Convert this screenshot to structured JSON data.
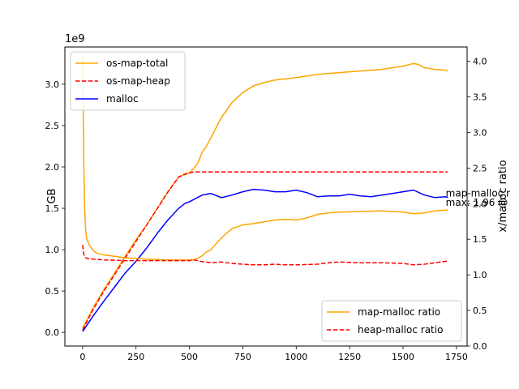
{
  "chart_data": {
    "type": "line",
    "x_ticks": [
      0,
      250,
      500,
      750,
      1000,
      1250,
      1500,
      1750
    ],
    "xlim": [
      -83,
      1800
    ],
    "left_axis": {
      "label": "GB",
      "offset_text": "1e9",
      "ylim": [
        -0.165,
        3.45
      ],
      "ticks": [
        0.0,
        0.5,
        1.0,
        1.5,
        2.0,
        2.5,
        3.0
      ],
      "tick_labels": [
        "0.0",
        "0.5",
        "1.0",
        "1.5",
        "2.0",
        "2.5",
        "3.0"
      ]
    },
    "right_axis": {
      "label": "x/malloc ratio",
      "ylim": [
        0.0,
        4.2
      ],
      "ticks": [
        0.0,
        0.5,
        1.0,
        1.5,
        2.0,
        2.5,
        3.0,
        3.5,
        4.0
      ],
      "tick_labels": [
        "0.0",
        "0.5",
        "1.0",
        "1.5",
        "2.0",
        "2.5",
        "3.0",
        "3.5",
        "4.0"
      ]
    },
    "series_left": [
      {
        "name": "os-map-total",
        "color": "#ffa500",
        "style": "solid",
        "x": [
          0,
          20,
          50,
          100,
          150,
          200,
          250,
          300,
          350,
          400,
          450,
          480,
          500,
          520,
          540,
          560,
          580,
          600,
          650,
          700,
          750,
          800,
          850,
          900,
          1000,
          1100,
          1200,
          1300,
          1400,
          1500,
          1550,
          1570,
          1600,
          1650,
          1700,
          1710
        ],
        "y": [
          0.05,
          0.15,
          0.3,
          0.52,
          0.72,
          0.92,
          1.12,
          1.3,
          1.5,
          1.7,
          1.88,
          1.92,
          1.93,
          1.98,
          2.05,
          2.18,
          2.25,
          2.35,
          2.6,
          2.78,
          2.9,
          2.98,
          3.02,
          3.05,
          3.08,
          3.12,
          3.14,
          3.16,
          3.18,
          3.22,
          3.25,
          3.24,
          3.2,
          3.18,
          3.17,
          3.16
        ]
      },
      {
        "name": "os-map-heap",
        "color": "#ff0000",
        "style": "dashed",
        "x": [
          0,
          50,
          100,
          150,
          200,
          250,
          300,
          350,
          400,
          450,
          490,
          520,
          600,
          1000,
          1500,
          1710
        ],
        "y": [
          0.03,
          0.28,
          0.5,
          0.7,
          0.9,
          1.1,
          1.3,
          1.5,
          1.7,
          1.88,
          1.92,
          1.94,
          1.94,
          1.94,
          1.94,
          1.94
        ]
      },
      {
        "name": "malloc",
        "color": "#0000ff",
        "style": "solid",
        "x": [
          0,
          50,
          100,
          150,
          200,
          250,
          300,
          350,
          400,
          450,
          480,
          500,
          530,
          560,
          600,
          650,
          700,
          750,
          800,
          850,
          900,
          950,
          1000,
          1050,
          1100,
          1150,
          1200,
          1250,
          1300,
          1350,
          1400,
          1450,
          1500,
          1550,
          1600,
          1650,
          1700,
          1710
        ],
        "y": [
          0.01,
          0.2,
          0.38,
          0.55,
          0.72,
          0.86,
          1.02,
          1.2,
          1.36,
          1.5,
          1.56,
          1.58,
          1.62,
          1.66,
          1.68,
          1.63,
          1.66,
          1.7,
          1.73,
          1.72,
          1.7,
          1.7,
          1.72,
          1.69,
          1.64,
          1.65,
          1.65,
          1.67,
          1.65,
          1.64,
          1.66,
          1.68,
          1.7,
          1.72,
          1.66,
          1.63,
          1.64,
          1.63
        ]
      }
    ],
    "series_right": [
      {
        "name": "map-malloc ratio",
        "color": "#ffa500",
        "style": "solid",
        "x": [
          0,
          3,
          6,
          10,
          15,
          20,
          30,
          40,
          50,
          70,
          100,
          150,
          200,
          250,
          300,
          400,
          450,
          500,
          520,
          540,
          560,
          580,
          600,
          620,
          650,
          680,
          700,
          750,
          800,
          900,
          950,
          1000,
          1050,
          1100,
          1150,
          1200,
          1300,
          1400,
          1450,
          1500,
          1550,
          1600,
          1650,
          1700,
          1710
        ],
        "y": [
          4.1,
          3.3,
          2.5,
          1.9,
          1.6,
          1.5,
          1.42,
          1.38,
          1.34,
          1.3,
          1.28,
          1.26,
          1.24,
          1.23,
          1.22,
          1.21,
          1.21,
          1.21,
          1.21,
          1.23,
          1.27,
          1.32,
          1.35,
          1.42,
          1.52,
          1.6,
          1.65,
          1.7,
          1.72,
          1.77,
          1.78,
          1.77,
          1.8,
          1.85,
          1.87,
          1.88,
          1.89,
          1.9,
          1.89,
          1.88,
          1.86,
          1.87,
          1.9,
          1.91,
          1.91
        ]
      },
      {
        "name": "heap-malloc ratio",
        "color": "#ff0000",
        "style": "dashed",
        "x": [
          0,
          5,
          10,
          20,
          50,
          100,
          200,
          300,
          400,
          450,
          500,
          520,
          550,
          600,
          650,
          700,
          750,
          800,
          850,
          900,
          950,
          1000,
          1100,
          1150,
          1200,
          1300,
          1400,
          1500,
          1550,
          1600,
          1650,
          1700,
          1710
        ],
        "y": [
          1.42,
          1.3,
          1.25,
          1.23,
          1.22,
          1.21,
          1.2,
          1.2,
          1.2,
          1.2,
          1.2,
          1.21,
          1.19,
          1.17,
          1.18,
          1.16,
          1.15,
          1.14,
          1.14,
          1.15,
          1.14,
          1.14,
          1.15,
          1.17,
          1.18,
          1.17,
          1.17,
          1.16,
          1.14,
          1.15,
          1.17,
          1.19,
          1.19
        ]
      }
    ],
    "annotations": [
      {
        "text": "map-malloc r",
        "x": 1700,
        "y": 2.1
      },
      {
        "text": "max: 1.96 @",
        "x": 1700,
        "y": 1.97
      }
    ],
    "legend_upper": {
      "position": "upper-left",
      "entries": [
        "os-map-total",
        "os-map-heap",
        "malloc"
      ]
    },
    "legend_lower": {
      "position": "lower-right",
      "entries": [
        "map-malloc ratio",
        "heap-malloc ratio"
      ]
    }
  }
}
